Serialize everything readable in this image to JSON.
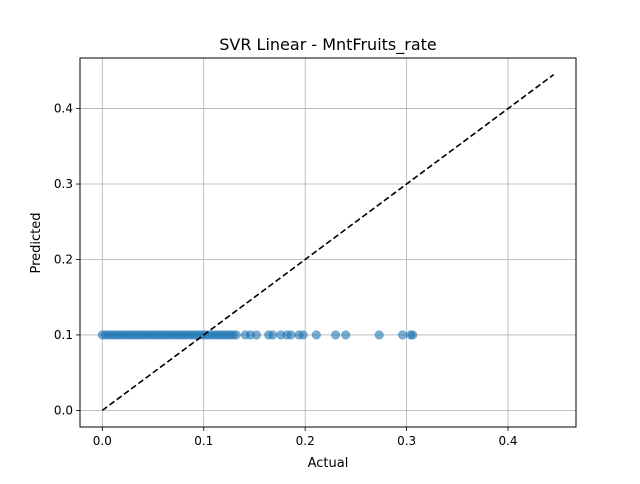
{
  "chart_data": {
    "type": "scatter",
    "title": "SVR Linear - MntFruits_rate",
    "xlabel": "Actual",
    "ylabel": "Predicted",
    "xlim": [
      -0.022,
      0.467
    ],
    "ylim": [
      -0.022,
      0.467
    ],
    "xticks": [
      0.0,
      0.1,
      0.2,
      0.3,
      0.4
    ],
    "yticks": [
      0.0,
      0.1,
      0.2,
      0.3,
      0.4
    ],
    "xtick_labels": [
      "0.0",
      "0.1",
      "0.2",
      "0.3",
      "0.4"
    ],
    "ytick_labels": [
      "0.0",
      "0.1",
      "0.2",
      "0.3",
      "0.4"
    ],
    "grid": true,
    "point_color": "#1f77b4",
    "point_opacity": 0.6,
    "reference_line": {
      "x": [
        0.0,
        0.445
      ],
      "y": [
        0.0,
        0.445
      ],
      "color": "#000000",
      "style": "dashed"
    },
    "x": [
      0.0,
      0.003,
      0.006,
      0.009,
      0.012,
      0.015,
      0.018,
      0.021,
      0.024,
      0.027,
      0.03,
      0.033,
      0.036,
      0.039,
      0.042,
      0.045,
      0.048,
      0.051,
      0.054,
      0.057,
      0.06,
      0.063,
      0.066,
      0.069,
      0.072,
      0.075,
      0.078,
      0.081,
      0.084,
      0.087,
      0.09,
      0.093,
      0.096,
      0.099,
      0.102,
      0.105,
      0.108,
      0.111,
      0.114,
      0.117,
      0.12,
      0.123,
      0.126,
      0.129,
      0.132,
      0.141,
      0.146,
      0.152,
      0.164,
      0.168,
      0.176,
      0.182,
      0.186,
      0.194,
      0.198,
      0.211,
      0.23,
      0.24,
      0.273,
      0.296,
      0.304,
      0.306
    ],
    "y": [
      0.1,
      0.1,
      0.1,
      0.1,
      0.1,
      0.1,
      0.1,
      0.1,
      0.1,
      0.1,
      0.1,
      0.1,
      0.1,
      0.1,
      0.1,
      0.1,
      0.1,
      0.1,
      0.1,
      0.1,
      0.1,
      0.1,
      0.1,
      0.1,
      0.1,
      0.1,
      0.1,
      0.1,
      0.1,
      0.1,
      0.1,
      0.1,
      0.1,
      0.1,
      0.1,
      0.1,
      0.1,
      0.1,
      0.1,
      0.1,
      0.1,
      0.1,
      0.1,
      0.1,
      0.1,
      0.1,
      0.1,
      0.1,
      0.1,
      0.1,
      0.1,
      0.1,
      0.1,
      0.1,
      0.1,
      0.1,
      0.1,
      0.1,
      0.1,
      0.1,
      0.1,
      0.1
    ]
  }
}
